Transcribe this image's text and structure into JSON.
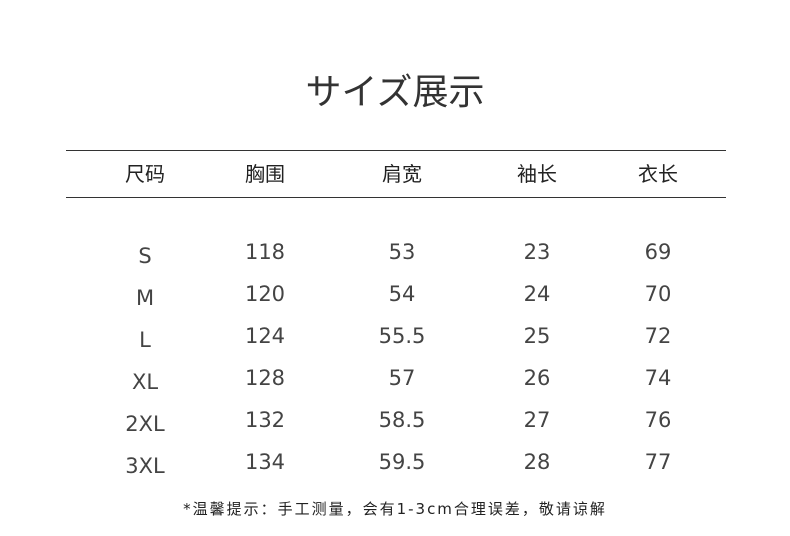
{
  "title": "サイズ展示",
  "headers": [
    "尺码",
    "胸围",
    "肩宽",
    "袖长",
    "衣长"
  ],
  "rows": [
    [
      "S",
      "118",
      "53",
      "23",
      "69"
    ],
    [
      "M",
      "120",
      "54",
      "24",
      "70"
    ],
    [
      "L",
      "124",
      "55.5",
      "25",
      "72"
    ],
    [
      "XL",
      "128",
      "57",
      "26",
      "74"
    ],
    [
      "2XL",
      "132",
      "58.5",
      "27",
      "76"
    ],
    [
      "3XL",
      "134",
      "59.5",
      "28",
      "77"
    ]
  ],
  "note": "*温馨提示：手工测量，会有1-3cm合理误差，敬请谅解"
}
